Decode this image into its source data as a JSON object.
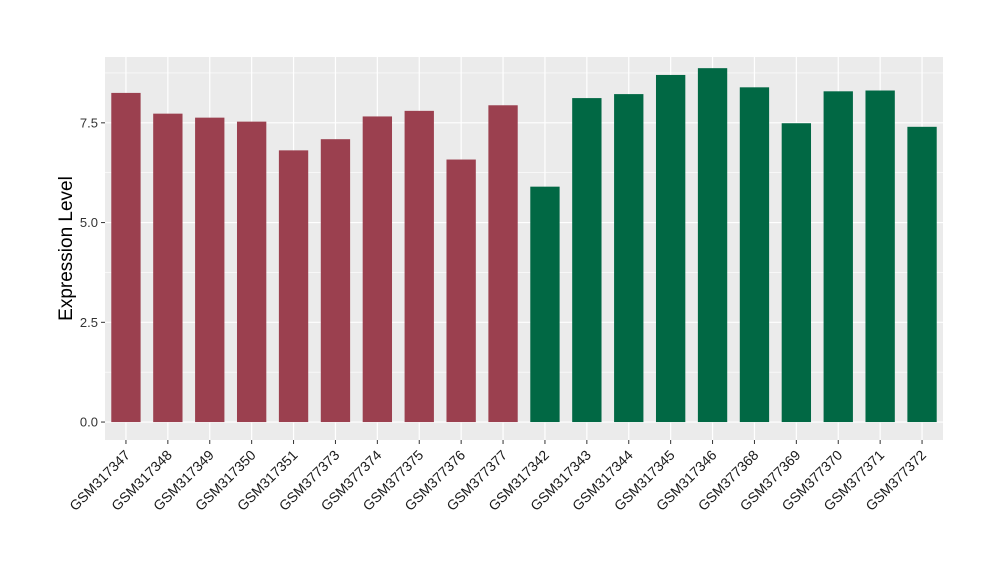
{
  "chart_data": {
    "type": "bar",
    "title": "",
    "xlabel": "",
    "ylabel": "Expression Level",
    "ylim": [
      0,
      9.15
    ],
    "yticks": [
      0.0,
      2.5,
      5.0,
      7.5
    ],
    "ytick_labels": [
      "0.0",
      "2.5",
      "5.0",
      "7.5"
    ],
    "grid": true,
    "legend": "none",
    "colors": {
      "group1": "#9B404F",
      "group2": "#016844",
      "panel": "#EBEBEB",
      "grid": "#FFFFFF"
    },
    "categories": [
      "GSM317347",
      "GSM317348",
      "GSM317349",
      "GSM317350",
      "GSM317351",
      "GSM377373",
      "GSM377374",
      "GSM377375",
      "GSM377376",
      "GSM377377",
      "GSM317342",
      "GSM317343",
      "GSM317344",
      "GSM317345",
      "GSM317346",
      "GSM377368",
      "GSM377369",
      "GSM377370",
      "GSM377371",
      "GSM377372"
    ],
    "values": [
      8.25,
      7.73,
      7.63,
      7.53,
      6.81,
      7.09,
      7.66,
      7.8,
      6.58,
      7.94,
      5.9,
      8.12,
      8.22,
      8.7,
      8.87,
      8.39,
      7.49,
      8.29,
      8.31,
      7.4
    ],
    "groups": [
      1,
      1,
      1,
      1,
      1,
      1,
      1,
      1,
      1,
      1,
      2,
      2,
      2,
      2,
      2,
      2,
      2,
      2,
      2,
      2
    ]
  }
}
